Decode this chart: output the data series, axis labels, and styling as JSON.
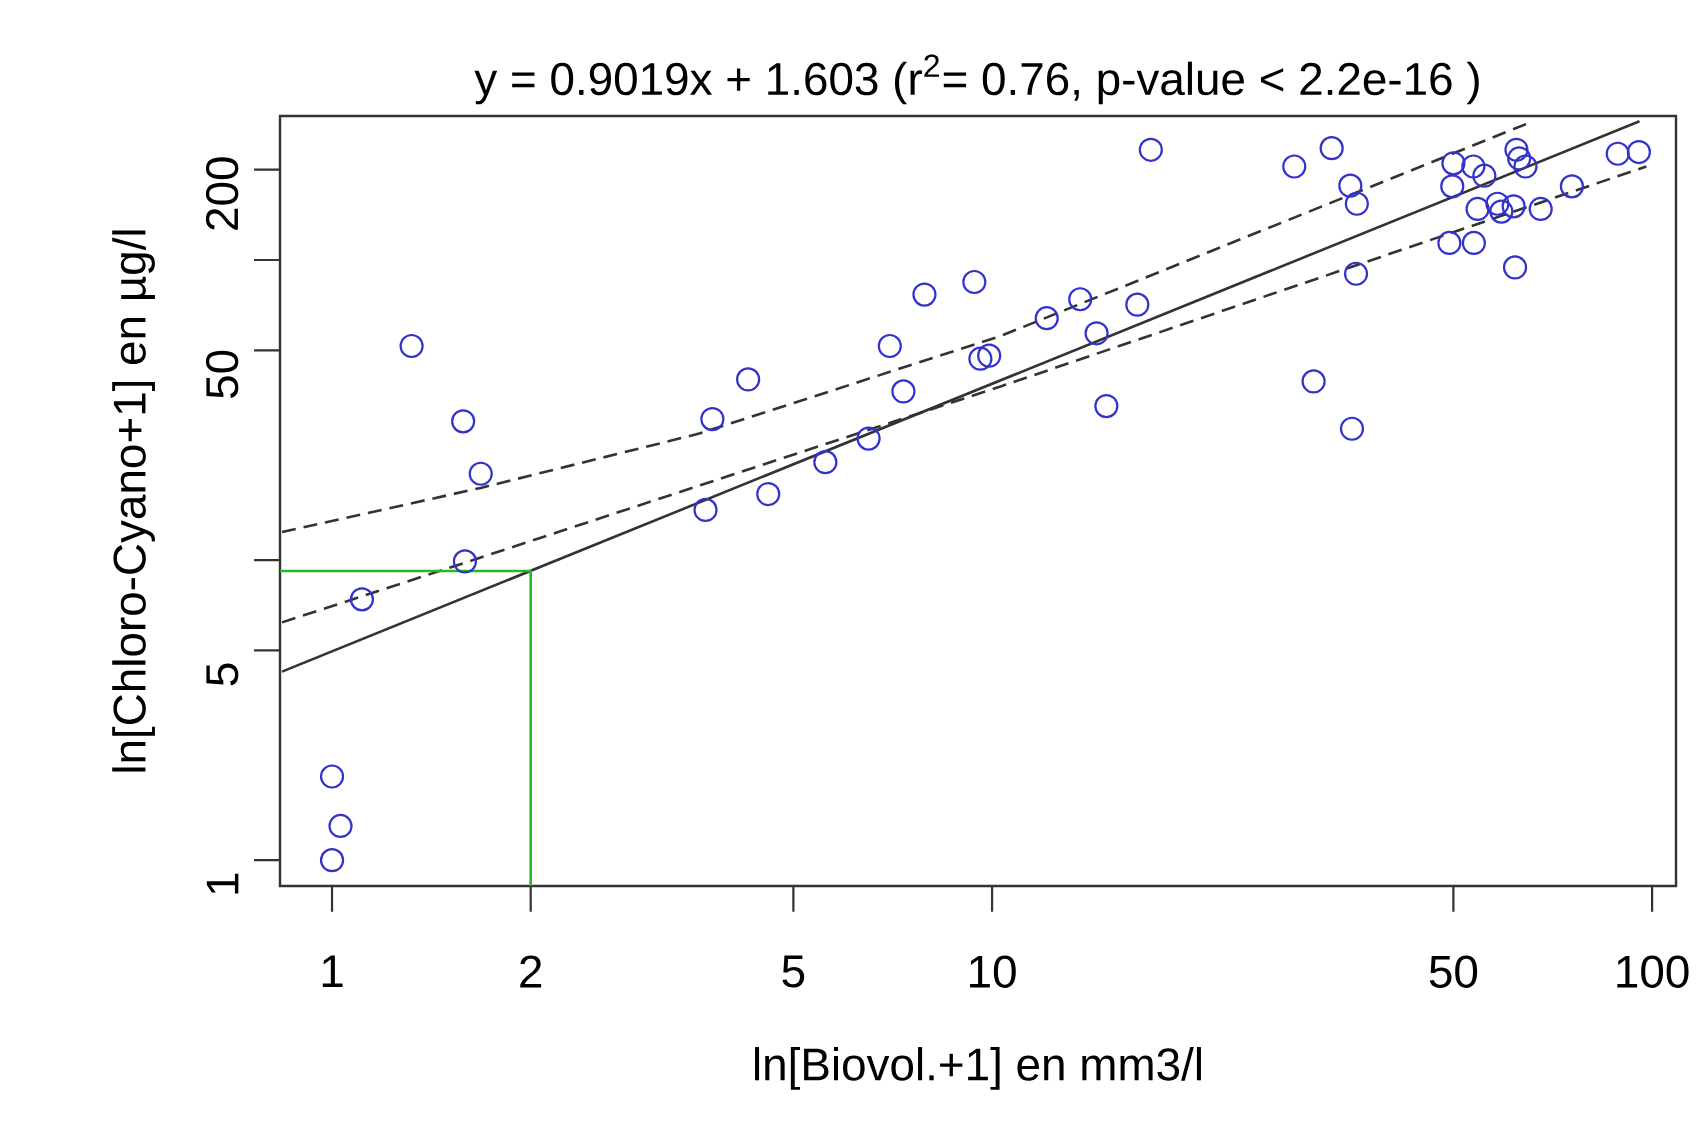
{
  "chart_data": {
    "type": "scatter",
    "title": "y = 0.9019x + 1.603 (r$^{2}$= 0.76, p-value < 2.2e-16 )",
    "xlabel": "ln[Biovol.+1] en mm3/l",
    "ylabel": "ln[Chloro-Cyano+1] en µg/l",
    "log": "xy",
    "xlim": [
      0.834,
      108.7
    ],
    "ylim": [
      0.82,
      302
    ],
    "xticks": [
      1,
      2,
      5,
      10,
      50,
      100
    ],
    "yticks": [
      1,
      5,
      {
        "value": 10,
        "label": null
      },
      50,
      {
        "value": 100,
        "label": null
      },
      200
    ],
    "grid": false,
    "series": [
      {
        "color": "#3333cc",
        "marker": "circle",
        "x": [
          1.32,
          1.58,
          1.68,
          1.59,
          1.11,
          1.0,
          1.03,
          1.0,
          3.68,
          4.58,
          5.59,
          6.5,
          7.34,
          7.0,
          7.9,
          9.4,
          9.6,
          9.9,
          3.77,
          4.27,
          12.1,
          13.6,
          14.4,
          16.6,
          14.9,
          17.4,
          28.7,
          32.7,
          34.9,
          35.7,
          35.6,
          30.7,
          35.1,
          50,
          49.8,
          53.6,
          55.7,
          49.3,
          53.7,
          54.4,
          58.3,
          59.1,
          61.7,
          62.3,
          62.9,
          64.3,
          62,
          67.8,
          75.6,
          88.7,
          95.5
        ],
        "values": [
          51.7,
          29,
          19.4,
          9.9,
          7.4,
          1.9,
          1.3,
          1.0,
          14.7,
          16.6,
          21.2,
          25.4,
          36.5,
          51.7,
          76.7,
          84.5,
          46.9,
          48,
          29.5,
          40,
          64,
          74,
          57,
          71,
          32.6,
          233,
          205,
          236,
          177,
          154,
          90,
          39.4,
          27.4,
          210,
          176,
          205,
          191,
          114,
          114,
          148,
          154,
          145,
          151,
          233,
          218,
          205,
          94.5,
          148,
          176,
          226,
          229
        ]
      },
      {
        "type": "line",
        "color": "#333333",
        "marker": "none",
        "line_style": "solid",
        "x": [
          0.84,
          95.7
        ],
        "values": [
          4.25,
          290
        ]
      },
      {
        "type": "line",
        "color": "#333333",
        "marker": "none",
        "line_style": "dashed",
        "x": [
          0.84,
          1.68,
          3.6,
          10.3,
          66
        ],
        "values": [
          12.4,
          17.4,
          26.4,
          55.8,
          290
        ]
      },
      {
        "type": "line",
        "color": "#333333",
        "marker": "none",
        "line_style": "dashed",
        "x": [
          0.84,
          1.59,
          10.3,
          98
        ],
        "values": [
          6.2,
          9.8,
          37.9,
          205
        ]
      },
      {
        "type": "line",
        "color": "#22bb22",
        "marker": "none",
        "line_style": "solid",
        "x": [
          0.834,
          2,
          2
        ],
        "values": [
          9.2,
          9.2,
          0.82
        ]
      }
    ]
  }
}
